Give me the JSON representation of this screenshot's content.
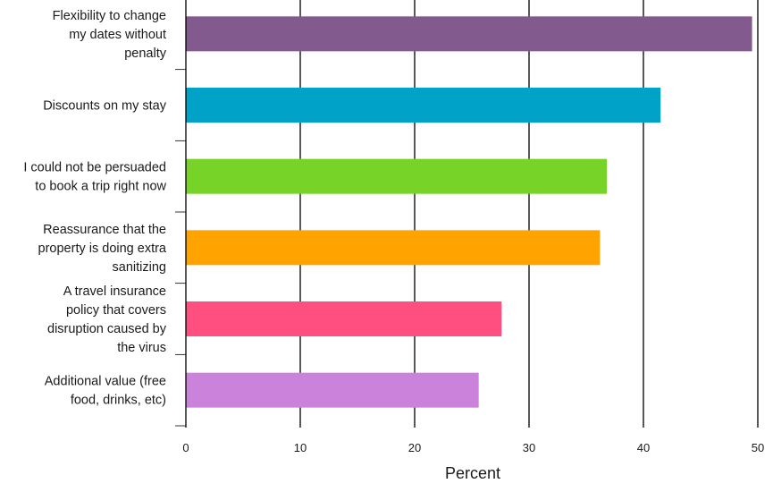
{
  "chart_data": {
    "type": "bar",
    "orientation": "horizontal",
    "title": "",
    "xlabel": "Percent",
    "ylabel": "",
    "xlim": [
      0,
      50
    ],
    "xticks": [
      0,
      10,
      20,
      30,
      40,
      50
    ],
    "grid": true,
    "categories": [
      "Flexibility to change my dates without penalty",
      "Discounts on my stay",
      "I could not be persuaded to book a trip right now",
      "Reassurance that the property is doing extra sanitizing",
      "A travel insurance policy that covers disruption caused by the virus",
      "Additional value (free food, drinks, etc)"
    ],
    "label_lines": [
      [
        "Flexibility to change",
        "my dates without",
        "penalty"
      ],
      [
        "Discounts on my stay"
      ],
      [
        "I could not be persuaded",
        "to book a trip right now"
      ],
      [
        "Reassurance that the",
        "property is doing extra",
        "sanitizing"
      ],
      [
        "A travel insurance",
        "policy that covers",
        "disruption caused by",
        "the virus"
      ],
      [
        "Additional value (free",
        "food, drinks, etc)"
      ]
    ],
    "values": [
      49.5,
      41.5,
      36.8,
      36.2,
      27.6,
      25.6
    ],
    "colors": [
      "#835a8d",
      "#00a3c7",
      "#77d327",
      "#ffa300",
      "#ff4f80",
      "#cb82db"
    ]
  }
}
